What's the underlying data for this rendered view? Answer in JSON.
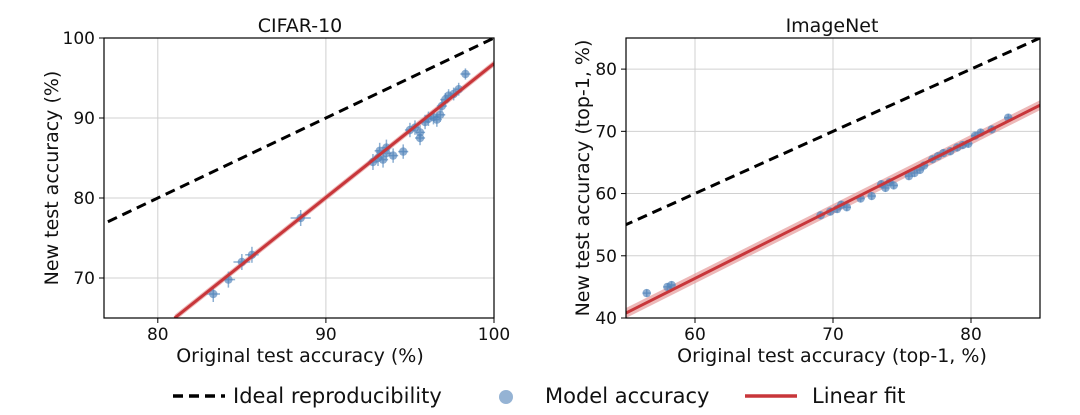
{
  "legend": {
    "ideal_label": "Ideal reproducibility",
    "model_label": "Model accuracy",
    "fit_label": "Linear fit",
    "placement": "bottom-center"
  },
  "colors": {
    "points": "#4f81b8",
    "errorbars": "#6f9bc7",
    "fit": "#c8363a",
    "fit_band": "#e59a9a",
    "ideal": "#000000",
    "grid": "#d0d0d0"
  },
  "chart_data": [
    {
      "type": "scatter",
      "title": "CIFAR-10",
      "xlabel": "Original test accuracy (%)",
      "ylabel": "New test accuracy (%)",
      "xlim": [
        76.8,
        100
      ],
      "ylim": [
        65,
        100
      ],
      "xticks": [
        80,
        90,
        100
      ],
      "yticks": [
        70,
        80,
        90,
        100
      ],
      "grid": true,
      "ideal_line": {
        "slope": 1,
        "intercept": 0
      },
      "linear_fit": {
        "x": [
          81,
          100
        ],
        "y": [
          65,
          96.8
        ],
        "band": 0.4
      },
      "points": [
        {
          "x": 83.3,
          "y": 68.0,
          "xerr": 0.4,
          "yerr": 1.0
        },
        {
          "x": 84.2,
          "y": 69.8,
          "xerr": 0.4,
          "yerr": 1.0
        },
        {
          "x": 85.0,
          "y": 72.0,
          "xerr": 0.5,
          "yerr": 1.0
        },
        {
          "x": 85.6,
          "y": 72.9,
          "xerr": 0.4,
          "yerr": 1.0
        },
        {
          "x": 88.5,
          "y": 77.5,
          "xerr": 0.6,
          "yerr": 1.0
        },
        {
          "x": 92.8,
          "y": 84.5,
          "xerr": 0.3,
          "yerr": 1.0
        },
        {
          "x": 93.1,
          "y": 85.0,
          "xerr": 0.3,
          "yerr": 1.0
        },
        {
          "x": 93.4,
          "y": 84.8,
          "xerr": 0.3,
          "yerr": 1.0
        },
        {
          "x": 93.6,
          "y": 85.6,
          "xerr": 0.3,
          "yerr": 1.0
        },
        {
          "x": 93.2,
          "y": 85.9,
          "xerr": 0.3,
          "yerr": 1.0
        },
        {
          "x": 93.6,
          "y": 86.3,
          "xerr": 0.3,
          "yerr": 1.0
        },
        {
          "x": 94.0,
          "y": 85.3,
          "xerr": 0.3,
          "yerr": 0.9
        },
        {
          "x": 94.6,
          "y": 85.8,
          "xerr": 0.3,
          "yerr": 0.9
        },
        {
          "x": 95.0,
          "y": 88.5,
          "xerr": 0.3,
          "yerr": 0.9
        },
        {
          "x": 95.3,
          "y": 88.8,
          "xerr": 0.3,
          "yerr": 0.9
        },
        {
          "x": 95.6,
          "y": 88.2,
          "xerr": 0.3,
          "yerr": 0.9
        },
        {
          "x": 95.6,
          "y": 87.5,
          "xerr": 0.3,
          "yerr": 0.9
        },
        {
          "x": 95.9,
          "y": 89.5,
          "xerr": 0.3,
          "yerr": 0.9
        },
        {
          "x": 96.1,
          "y": 89.9,
          "xerr": 0.3,
          "yerr": 0.9
        },
        {
          "x": 96.4,
          "y": 90.1,
          "xerr": 0.3,
          "yerr": 0.9
        },
        {
          "x": 96.6,
          "y": 89.8,
          "xerr": 0.3,
          "yerr": 0.9
        },
        {
          "x": 96.8,
          "y": 90.4,
          "xerr": 0.3,
          "yerr": 0.9
        },
        {
          "x": 96.9,
          "y": 91.5,
          "xerr": 0.3,
          "yerr": 0.8
        },
        {
          "x": 97.1,
          "y": 92.3,
          "xerr": 0.3,
          "yerr": 0.8
        },
        {
          "x": 97.3,
          "y": 92.8,
          "xerr": 0.3,
          "yerr": 0.8
        },
        {
          "x": 97.6,
          "y": 93.0,
          "xerr": 0.3,
          "yerr": 0.8
        },
        {
          "x": 97.9,
          "y": 93.6,
          "xerr": 0.3,
          "yerr": 0.8
        },
        {
          "x": 98.3,
          "y": 95.5,
          "xerr": 0.3,
          "yerr": 0.7
        }
      ]
    },
    {
      "type": "scatter",
      "title": "ImageNet",
      "xlabel": "Original test accuracy (top-1, %)",
      "ylabel": "New test accuracy (top-1, %)",
      "xlim": [
        55,
        85
      ],
      "ylim": [
        40,
        85
      ],
      "xticks": [
        60,
        70,
        80
      ],
      "yticks": [
        40,
        50,
        60,
        70,
        80
      ],
      "grid": true,
      "ideal_line": {
        "slope": 1,
        "intercept": 0
      },
      "linear_fit": {
        "x": [
          55,
          85
        ],
        "y": [
          40.8,
          74.2
        ],
        "band": 0.8
      },
      "points": [
        {
          "x": 56.5,
          "y": 44.0,
          "xerr": 0.3,
          "yerr": 0.6
        },
        {
          "x": 58.0,
          "y": 45.0,
          "xerr": 0.3,
          "yerr": 0.6
        },
        {
          "x": 58.3,
          "y": 45.3,
          "xerr": 0.3,
          "yerr": 0.6
        },
        {
          "x": 69.1,
          "y": 56.5,
          "xerr": 0.3,
          "yerr": 0.6
        },
        {
          "x": 69.8,
          "y": 57.1,
          "xerr": 0.3,
          "yerr": 0.6
        },
        {
          "x": 70.3,
          "y": 57.5,
          "xerr": 0.3,
          "yerr": 0.6
        },
        {
          "x": 70.6,
          "y": 58.2,
          "xerr": 0.3,
          "yerr": 0.6
        },
        {
          "x": 71.0,
          "y": 57.8,
          "xerr": 0.3,
          "yerr": 0.6
        },
        {
          "x": 72.0,
          "y": 59.2,
          "xerr": 0.3,
          "yerr": 0.6
        },
        {
          "x": 72.8,
          "y": 59.6,
          "xerr": 0.3,
          "yerr": 0.6
        },
        {
          "x": 73.5,
          "y": 61.5,
          "xerr": 0.3,
          "yerr": 0.6
        },
        {
          "x": 73.8,
          "y": 60.9,
          "xerr": 0.3,
          "yerr": 0.6
        },
        {
          "x": 74.1,
          "y": 61.8,
          "xerr": 0.3,
          "yerr": 0.6
        },
        {
          "x": 74.4,
          "y": 61.3,
          "xerr": 0.3,
          "yerr": 0.6
        },
        {
          "x": 75.5,
          "y": 62.8,
          "xerr": 0.3,
          "yerr": 0.6
        },
        {
          "x": 75.9,
          "y": 63.3,
          "xerr": 0.3,
          "yerr": 0.6
        },
        {
          "x": 76.3,
          "y": 63.8,
          "xerr": 0.3,
          "yerr": 0.6
        },
        {
          "x": 76.6,
          "y": 64.5,
          "xerr": 0.3,
          "yerr": 0.6
        },
        {
          "x": 77.2,
          "y": 65.5,
          "xerr": 0.3,
          "yerr": 0.6
        },
        {
          "x": 77.6,
          "y": 66.0,
          "xerr": 0.3,
          "yerr": 0.6
        },
        {
          "x": 78.0,
          "y": 66.5,
          "xerr": 0.3,
          "yerr": 0.6
        },
        {
          "x": 78.5,
          "y": 66.8,
          "xerr": 0.3,
          "yerr": 0.6
        },
        {
          "x": 79.0,
          "y": 67.4,
          "xerr": 0.3,
          "yerr": 0.6
        },
        {
          "x": 79.4,
          "y": 67.8,
          "xerr": 0.3,
          "yerr": 0.6
        },
        {
          "x": 79.8,
          "y": 68.0,
          "xerr": 0.3,
          "yerr": 0.6
        },
        {
          "x": 80.3,
          "y": 69.3,
          "xerr": 0.3,
          "yerr": 0.6
        },
        {
          "x": 80.7,
          "y": 69.8,
          "xerr": 0.3,
          "yerr": 0.6
        },
        {
          "x": 81.5,
          "y": 70.3,
          "xerr": 0.3,
          "yerr": 0.6
        },
        {
          "x": 82.7,
          "y": 72.2,
          "xerr": 0.3,
          "yerr": 0.6
        }
      ]
    }
  ]
}
